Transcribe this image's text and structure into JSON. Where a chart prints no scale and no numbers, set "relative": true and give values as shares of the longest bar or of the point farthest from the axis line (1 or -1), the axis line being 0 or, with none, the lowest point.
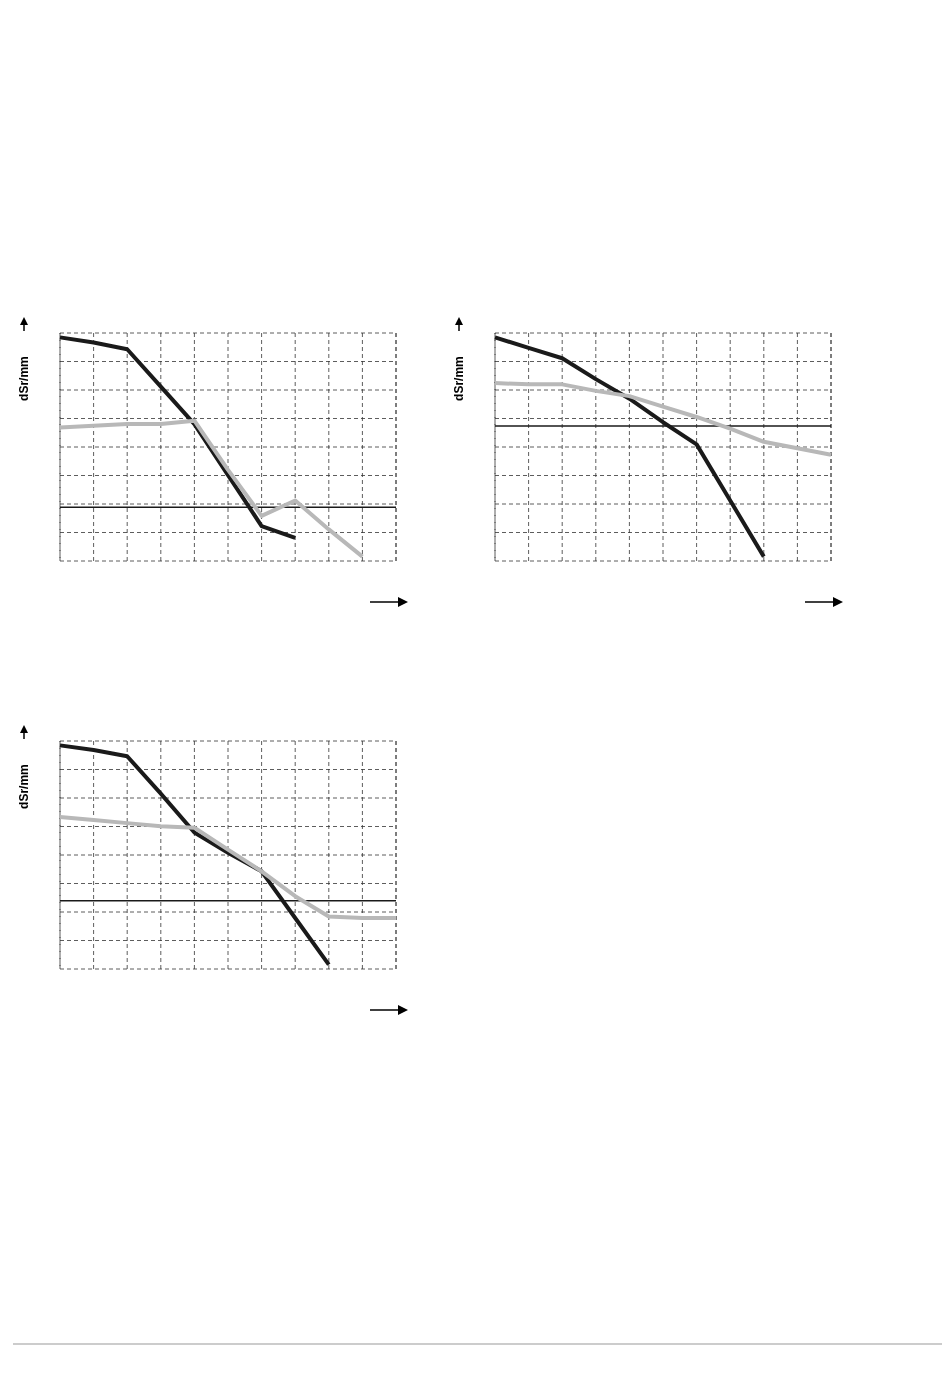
{
  "chart_data": [
    {
      "type": "line",
      "ylabel": "dSr/mm",
      "relative": true,
      "grid": true,
      "categories": [
        null,
        null,
        null,
        null,
        null,
        null,
        null,
        null,
        null,
        null,
        null
      ],
      "ref_lines": [
        {
          "axis": "y",
          "value": 0,
          "color": "#1a1a1a"
        }
      ],
      "series": [
        {
          "color": "#1a1a1a",
          "values": [
            1.0,
            0.97,
            0.93,
            0.71,
            0.49,
            0.19,
            -0.11,
            -0.18,
            null,
            null,
            null
          ]
        },
        {
          "color": "#b8b8b8",
          "values": [
            0.47,
            0.48,
            0.49,
            0.49,
            0.51,
            0.22,
            -0.05,
            0.04,
            -0.13,
            -0.29,
            null
          ]
        }
      ]
    },
    {
      "type": "line",
      "ylabel": "dSr/mm",
      "relative": true,
      "grid": true,
      "categories": [
        null,
        null,
        null,
        null,
        null,
        null,
        null,
        null,
        null,
        null,
        null
      ],
      "ref_lines": [
        {
          "axis": "y",
          "value": 0,
          "color": "#1a1a1a"
        }
      ],
      "series": [
        {
          "color": "#1a1a1a",
          "values": [
            0.68,
            0.6,
            0.52,
            0.36,
            0.21,
            0.03,
            -0.14,
            -0.57,
            -1.0,
            null,
            null
          ]
        },
        {
          "color": "#b8b8b8",
          "values": [
            0.33,
            0.32,
            0.32,
            0.27,
            0.23,
            0.15,
            0.07,
            -0.02,
            -0.12,
            -0.17,
            -0.22
          ]
        }
      ]
    },
    {
      "type": "line",
      "ylabel": "dSr/mm",
      "relative": true,
      "grid": true,
      "categories": [
        null,
        null,
        null,
        null,
        null,
        null,
        null,
        null,
        null,
        null,
        null
      ],
      "ref_lines": [
        {
          "axis": "y",
          "value": 0,
          "color": "#1a1a1a"
        }
      ],
      "series": [
        {
          "color": "#1a1a1a",
          "values": [
            1.0,
            0.97,
            0.93,
            0.69,
            0.44,
            0.31,
            0.19,
            -0.11,
            -0.41,
            null,
            null
          ]
        },
        {
          "color": "#b8b8b8",
          "values": [
            0.54,
            0.52,
            0.5,
            0.48,
            0.47,
            0.33,
            0.19,
            0.03,
            -0.1,
            -0.11,
            -0.11
          ]
        }
      ]
    }
  ]
}
